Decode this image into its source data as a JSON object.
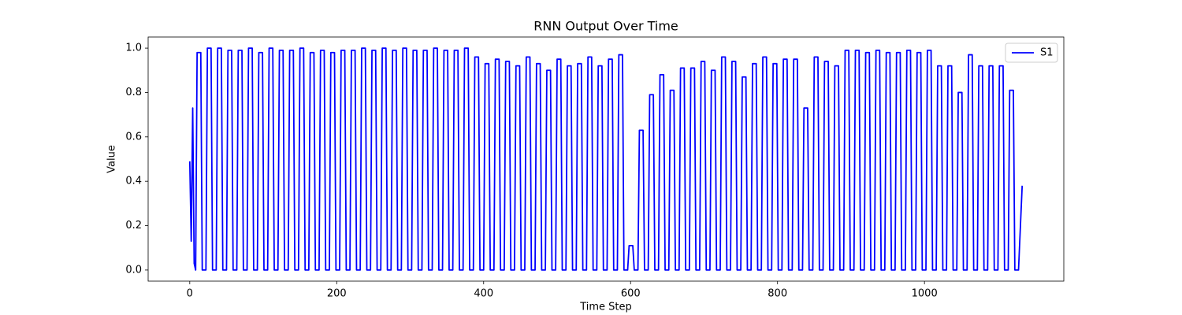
{
  "chart_data": {
    "type": "line",
    "title": "RNN Output Over Time",
    "x_label": "Time Step",
    "y_label": "Value",
    "xlim": [
      -56.65,
      1189.65
    ],
    "ylim": [
      -0.05,
      1.05
    ],
    "xticks": [
      0,
      200,
      400,
      600,
      800,
      1000
    ],
    "yticks": [
      {
        "value": 0,
        "label": "0.0"
      },
      {
        "value": 0.2,
        "label": "0.2"
      },
      {
        "value": 0.4,
        "label": "0.4"
      },
      {
        "value": 0.6,
        "label": "0.6"
      },
      {
        "value": 0.8,
        "label": "0.8"
      },
      {
        "value": 1,
        "label": "1.0"
      }
    ],
    "legend": "upper right",
    "x": [
      0,
      2,
      4,
      6,
      8,
      10,
      15,
      17,
      22,
      24,
      29,
      31,
      36,
      38,
      43,
      45,
      50,
      52,
      57,
      59,
      64,
      66,
      71,
      73,
      78,
      80,
      85,
      87,
      92,
      94,
      99,
      101,
      106,
      108,
      113,
      115,
      120,
      122,
      127,
      129,
      134,
      136,
      141,
      143,
      148,
      150,
      155,
      157,
      162,
      164,
      169,
      171,
      176,
      178,
      183,
      185,
      190,
      192,
      197,
      199,
      204,
      206,
      211,
      213,
      218,
      220,
      225,
      227,
      232,
      234,
      239,
      241,
      246,
      248,
      253,
      255,
      260,
      262,
      267,
      269,
      274,
      276,
      281,
      283,
      288,
      290,
      295,
      297,
      302,
      304,
      309,
      311,
      316,
      318,
      323,
      325,
      330,
      332,
      337,
      339,
      344,
      346,
      351,
      353,
      358,
      360,
      365,
      367,
      372,
      374,
      379,
      381,
      386,
      388,
      393,
      395,
      400,
      402,
      407,
      409,
      414,
      416,
      421,
      423,
      428,
      430,
      435,
      437,
      442,
      444,
      449,
      451,
      456,
      458,
      463,
      465,
      470,
      472,
      477,
      479,
      484,
      486,
      491,
      493,
      498,
      500,
      505,
      507,
      512,
      514,
      519,
      521,
      526,
      528,
      533,
      535,
      540,
      542,
      547,
      549,
      554,
      556,
      561,
      563,
      568,
      570,
      575,
      577,
      582,
      584,
      589,
      591,
      596,
      598,
      603,
      605,
      610,
      612,
      617,
      619,
      624,
      626,
      631,
      633,
      638,
      640,
      645,
      647,
      652,
      654,
      659,
      661,
      666,
      668,
      673,
      675,
      680,
      682,
      687,
      689,
      694,
      696,
      701,
      703,
      708,
      710,
      715,
      717,
      722,
      724,
      729,
      731,
      736,
      738,
      743,
      745,
      750,
      752,
      757,
      759,
      764,
      766,
      771,
      773,
      778,
      780,
      785,
      787,
      792,
      794,
      799,
      801,
      806,
      808,
      813,
      815,
      820,
      822,
      827,
      829,
      834,
      836,
      841,
      843,
      848,
      850,
      855,
      857,
      862,
      864,
      869,
      871,
      876,
      878,
      883,
      885,
      890,
      892,
      897,
      899,
      904,
      906,
      911,
      913,
      918,
      920,
      925,
      927,
      932,
      934,
      939,
      941,
      946,
      948,
      953,
      955,
      960,
      962,
      967,
      969,
      974,
      976,
      981,
      983,
      988,
      990,
      995,
      997,
      1002,
      1004,
      1009,
      1011,
      1016,
      1018,
      1023,
      1025,
      1030,
      1032,
      1037,
      1039,
      1044,
      1046,
      1051,
      1053,
      1058,
      1060,
      1065,
      1067,
      1072,
      1074,
      1079,
      1081,
      1086,
      1088,
      1093,
      1095,
      1100,
      1102,
      1107,
      1109,
      1114,
      1116,
      1121,
      1123,
      1128,
      1133
    ],
    "series": [
      {
        "name": "S1",
        "color": "#0000ff",
        "values": [
          0.49,
          0.13,
          0.73,
          0.03,
          0,
          0.98,
          0.98,
          0,
          0,
          1,
          1,
          0,
          0,
          1,
          1,
          0,
          0,
          0.99,
          0.99,
          0,
          0,
          0.99,
          0.99,
          0,
          0,
          1,
          1,
          0,
          0,
          0.98,
          0.98,
          0,
          0,
          1,
          1,
          0,
          0,
          0.99,
          0.99,
          0,
          0,
          0.99,
          0.99,
          0,
          0,
          1,
          1,
          0,
          0,
          0.98,
          0.98,
          0,
          0,
          0.99,
          0.99,
          0,
          0,
          0.98,
          0.98,
          0,
          0,
          0.99,
          0.99,
          0,
          0,
          0.99,
          0.99,
          0,
          0,
          1,
          1,
          0,
          0,
          0.99,
          0.99,
          0,
          0,
          1,
          1,
          0,
          0,
          0.99,
          0.99,
          0,
          0,
          1,
          1,
          0,
          0,
          0.99,
          0.99,
          0,
          0,
          0.99,
          0.99,
          0,
          0,
          1,
          1,
          0,
          0,
          0.99,
          0.99,
          0,
          0,
          0.99,
          0.99,
          0,
          0,
          1,
          1,
          0,
          0,
          0.96,
          0.96,
          0,
          0,
          0.93,
          0.93,
          0,
          0,
          0.95,
          0.95,
          0,
          0,
          0.94,
          0.94,
          0,
          0,
          0.92,
          0.92,
          0,
          0,
          0.96,
          0.96,
          0,
          0,
          0.93,
          0.93,
          0,
          0,
          0.9,
          0.9,
          0,
          0,
          0.95,
          0.95,
          0,
          0,
          0.92,
          0.92,
          0,
          0,
          0.93,
          0.93,
          0,
          0,
          0.96,
          0.96,
          0,
          0,
          0.92,
          0.92,
          0,
          0,
          0.95,
          0.95,
          0,
          0,
          0.97,
          0.97,
          0,
          0,
          0.11,
          0.11,
          0,
          0,
          0.63,
          0.63,
          0,
          0,
          0.79,
          0.79,
          0,
          0,
          0.88,
          0.88,
          0,
          0,
          0.81,
          0.81,
          0,
          0,
          0.91,
          0.91,
          0,
          0,
          0.91,
          0.91,
          0,
          0,
          0.94,
          0.94,
          0,
          0,
          0.9,
          0.9,
          0,
          0,
          0.96,
          0.96,
          0,
          0,
          0.94,
          0.94,
          0,
          0,
          0.87,
          0.87,
          0,
          0,
          0.93,
          0.93,
          0,
          0,
          0.96,
          0.96,
          0,
          0,
          0.93,
          0.93,
          0,
          0,
          0.95,
          0.95,
          0,
          0,
          0.95,
          0.95,
          0,
          0,
          0.73,
          0.73,
          0,
          0,
          0.96,
          0.96,
          0,
          0,
          0.94,
          0.94,
          0,
          0,
          0.92,
          0.92,
          0,
          0,
          0.99,
          0.99,
          0,
          0,
          0.99,
          0.99,
          0,
          0,
          0.98,
          0.98,
          0,
          0,
          0.99,
          0.99,
          0,
          0,
          0.98,
          0.98,
          0,
          0,
          0.98,
          0.98,
          0,
          0,
          0.99,
          0.99,
          0,
          0,
          0.98,
          0.98,
          0,
          0,
          0.99,
          0.99,
          0,
          0,
          0.92,
          0.92,
          0,
          0,
          0.92,
          0.92,
          0,
          0,
          0.8,
          0.8,
          0,
          0,
          0.97,
          0.97,
          0,
          0,
          0.92,
          0.92,
          0,
          0,
          0.92,
          0.92,
          0,
          0,
          0.92,
          0.92,
          0,
          0,
          0.81,
          0.81,
          0,
          0,
          0.38
        ]
      }
    ]
  }
}
